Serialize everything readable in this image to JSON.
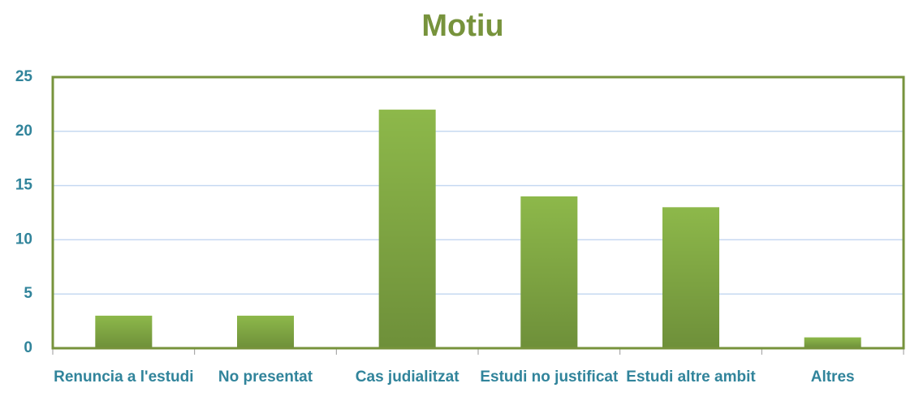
{
  "chart_data": {
    "type": "bar",
    "title": "Motiu",
    "categories": [
      "Renuncia a l'estudi",
      "No presentat",
      "Cas judialitzat",
      "Estudi no justificat",
      "Estudi altre ambit",
      "Altres"
    ],
    "values": [
      3,
      3,
      22,
      14,
      13,
      1
    ],
    "color": "#8db84a",
    "ylim": [
      0,
      25
    ],
    "yticks": [
      0,
      5,
      10,
      15,
      20,
      25
    ],
    "grid": true
  }
}
